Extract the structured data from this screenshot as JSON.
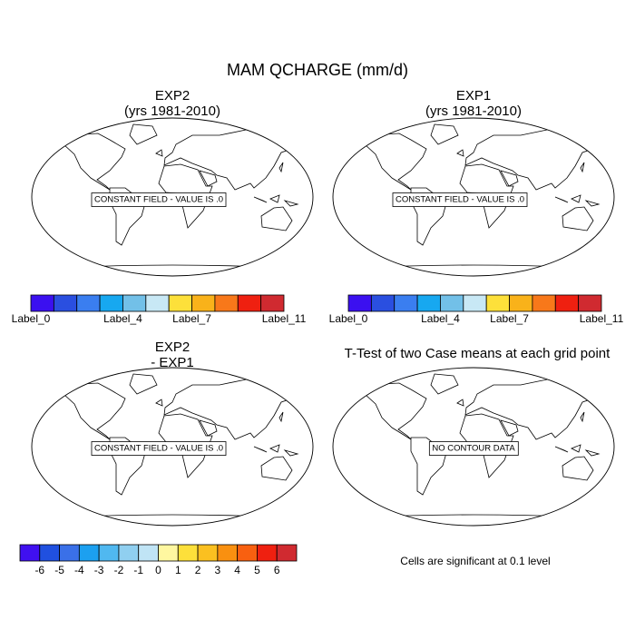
{
  "title": "MAM QCHARGE (mm/d)",
  "panels": [
    {
      "title": [
        "EXP2",
        "(yrs 1981-2010)"
      ],
      "message": "CONSTANT FIELD - VALUE IS .0"
    },
    {
      "title": [
        "EXP1",
        "(yrs 1981-2010)"
      ],
      "message": "CONSTANT FIELD - VALUE IS .0"
    },
    {
      "title": [
        "EXP2",
        "- EXP1"
      ],
      "message": "CONSTANT FIELD - VALUE IS .0"
    },
    {
      "title": [
        "T-Test of two Case means at each grid point"
      ],
      "message": "NO CONTOUR DATA"
    }
  ],
  "colorbars": [
    {
      "colors": [
        "#3b10f0",
        "#2a4fe0",
        "#3a7ef0",
        "#17a8f0",
        "#72c0e8",
        "#c8e8f5",
        "#fde03a",
        "#f9b21a",
        "#f8781a",
        "#ef2010",
        "#d02a30"
      ],
      "labels": [
        "Label_0",
        null,
        null,
        null,
        "Label_4",
        null,
        null,
        "Label_7",
        null,
        null,
        null,
        "Label_11"
      ]
    },
    {
      "colors": [
        "#3b10f0",
        "#2a4fe0",
        "#3a7ef0",
        "#17a8f0",
        "#72c0e8",
        "#c8e8f5",
        "#fde03a",
        "#f9b21a",
        "#f8781a",
        "#ef2010",
        "#d02a30"
      ],
      "labels": [
        "Label_0",
        null,
        null,
        null,
        "Label_4",
        null,
        null,
        "Label_7",
        null,
        null,
        null,
        "Label_11"
      ]
    },
    {
      "colors": [
        "#4010f0",
        "#2050e0",
        "#3a70e8",
        "#1ca0f0",
        "#50b8f0",
        "#90cff0",
        "#c0e4f5",
        "#fff7a0",
        "#fde03a",
        "#fbc020",
        "#f99010",
        "#f86010",
        "#ef2010",
        "#d02a30"
      ],
      "labels": [
        null,
        "-6",
        "-5",
        "-4",
        "-3",
        "-2",
        "-1",
        "0",
        "1",
        "2",
        "3",
        "4",
        "5",
        "6",
        null
      ]
    }
  ],
  "note": "Cells are significant at 0.1 level"
}
